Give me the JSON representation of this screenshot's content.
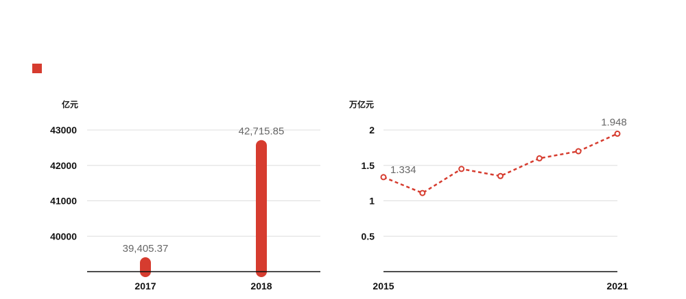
{
  "colors": {
    "accent": "#d63c2f",
    "grid": "#dddddd",
    "axis": "#111111"
  },
  "legend": {
    "icon": "square-swatch"
  },
  "chart_data": [
    {
      "type": "bar",
      "ylabel": "亿元",
      "categories": [
        "2017",
        "2018"
      ],
      "values": [
        39405.37,
        42715.85
      ],
      "value_labels": [
        "39,405.37",
        "42,715.85"
      ],
      "yticks": [
        40000,
        41000,
        42000,
        43000
      ],
      "ylim": [
        39000,
        43300
      ],
      "grid": true
    },
    {
      "type": "line",
      "ylabel": "万亿元",
      "x": [
        2015,
        2016,
        2017,
        2018,
        2019,
        2020,
        2021
      ],
      "x_tick_labels": [
        "2015",
        "2021"
      ],
      "values": [
        1.334,
        1.11,
        1.45,
        1.35,
        1.6,
        1.7,
        1.948
      ],
      "value_labels": [
        {
          "index": 0,
          "text": "1.334"
        },
        {
          "index": 6,
          "text": "1.948"
        }
      ],
      "yticks": [
        "0.5",
        "1",
        "1.5",
        "2"
      ],
      "ylim": [
        0,
        2.1
      ],
      "line_style": "dashed",
      "grid": true
    }
  ]
}
